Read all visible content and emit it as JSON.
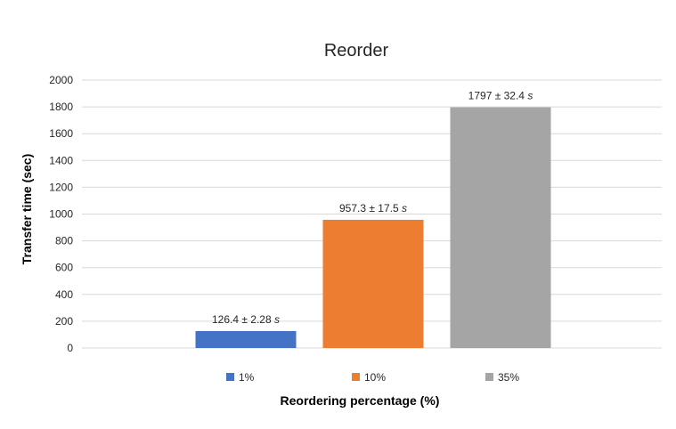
{
  "chart_data": {
    "type": "bar",
    "title": "Reorder",
    "xlabel": "Reordering percentage (%)",
    "ylabel": "Transfer time (sec)",
    "ylim": [
      0,
      2000
    ],
    "yticks": [
      0,
      200,
      400,
      600,
      800,
      1000,
      1200,
      1400,
      1600,
      1800,
      2000
    ],
    "grid": true,
    "legend_position": "bottom",
    "series": [
      {
        "name": "1%",
        "value": 126.4,
        "label": "126.4 ± 2.28 s",
        "color": "#4472c4"
      },
      {
        "name": "10%",
        "value": 957.3,
        "label": "957.3 ± 17.5 s",
        "color": "#ed7d31"
      },
      {
        "name": "35%",
        "value": 1797,
        "label": "1797 ± 32.4 s",
        "color": "#a5a5a5"
      }
    ]
  }
}
